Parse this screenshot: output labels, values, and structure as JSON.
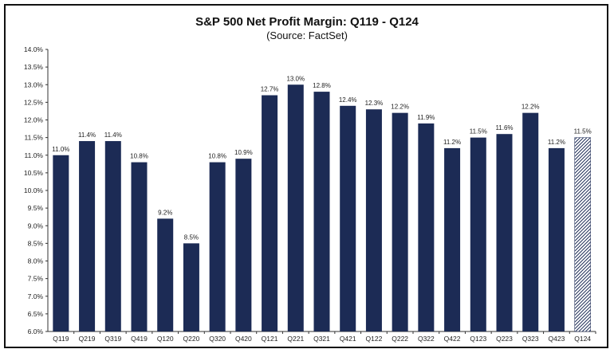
{
  "chart_data": {
    "type": "bar",
    "title": "S&P 500 Net Profit Margin: Q119 - Q124",
    "subtitle": "(Source: FactSet)",
    "categories": [
      "Q119",
      "Q219",
      "Q319",
      "Q419",
      "Q120",
      "Q220",
      "Q320",
      "Q420",
      "Q121",
      "Q221",
      "Q321",
      "Q421",
      "Q122",
      "Q222",
      "Q322",
      "Q422",
      "Q123",
      "Q223",
      "Q323",
      "Q423",
      "Q124"
    ],
    "values": [
      11.0,
      11.4,
      11.4,
      10.8,
      9.2,
      8.5,
      10.8,
      10.9,
      12.7,
      13.0,
      12.8,
      12.4,
      12.3,
      12.2,
      11.9,
      11.2,
      11.5,
      11.6,
      12.2,
      11.2,
      11.5
    ],
    "data_labels": [
      "11.0%",
      "11.4%",
      "11.4%",
      "10.8%",
      "9.2%",
      "8.5%",
      "10.8%",
      "10.9%",
      "12.7%",
      "13.0%",
      "12.8%",
      "12.4%",
      "12.3%",
      "12.2%",
      "11.9%",
      "11.2%",
      "11.5%",
      "11.6%",
      "12.2%",
      "11.2%",
      "11.5%"
    ],
    "estimated": [
      false,
      false,
      false,
      false,
      false,
      false,
      false,
      false,
      false,
      false,
      false,
      false,
      false,
      false,
      false,
      false,
      false,
      false,
      false,
      false,
      true
    ],
    "ylim": [
      6.0,
      14.0
    ],
    "ytick_labels": [
      "6.0%",
      "6.5%",
      "7.0%",
      "7.5%",
      "8.0%",
      "8.5%",
      "9.0%",
      "9.5%",
      "10.0%",
      "10.5%",
      "11.0%",
      "11.5%",
      "12.0%",
      "12.5%",
      "13.0%",
      "13.5%",
      "14.0%"
    ],
    "xlabel": "",
    "ylabel": "",
    "grid": false,
    "legend": "none",
    "colors": {
      "bar": "#1c2b55",
      "estimate_stripe": "#1c2b55",
      "axis": "#333333"
    }
  }
}
